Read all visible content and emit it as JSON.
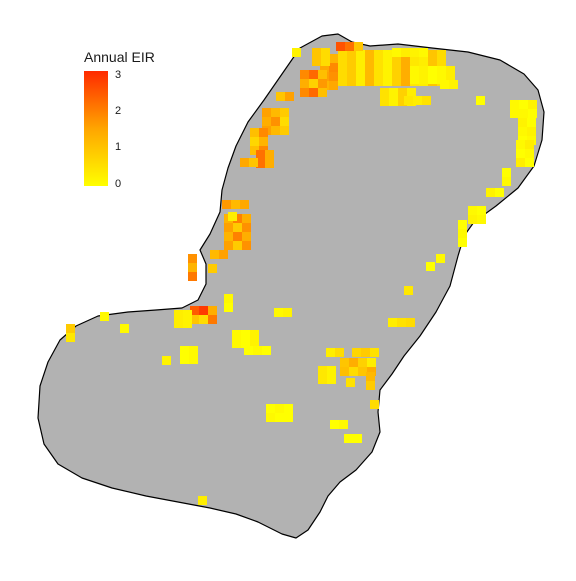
{
  "legend": {
    "title": "Annual EIR",
    "ticks": [
      "3",
      "2",
      "1",
      "0"
    ],
    "tick_values": [
      3,
      2,
      1,
      0
    ],
    "range": [
      0,
      3.1
    ]
  },
  "colors": {
    "background": "#ffffff",
    "land": "#b2b2b2",
    "outline": "#000000",
    "scale_low": "#ffff00",
    "scale_mid": "#ffa500",
    "scale_high": "#ff2a00"
  },
  "map_data": {
    "type": "heatmap",
    "cell_size_deg": "grid",
    "hotspots": [
      {
        "area": "north coast",
        "level": "high"
      },
      {
        "area": "northwest coast",
        "level": "medium"
      },
      {
        "area": "west coast",
        "level": "medium"
      },
      {
        "area": "east coast",
        "level": "low"
      },
      {
        "area": "south interior",
        "level": "low"
      }
    ]
  }
}
